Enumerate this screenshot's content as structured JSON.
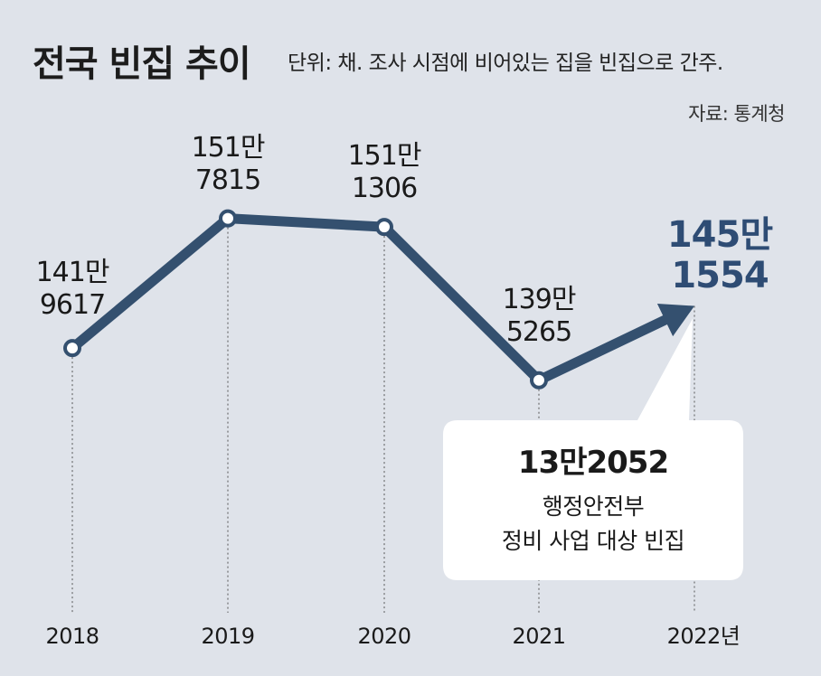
{
  "chart_data": {
    "type": "line",
    "title": "전국 빈집 추이",
    "subtitle": "단위: 채. 조사 시점에 비어있는 집을 빈집으로 간주.",
    "source": "자료: 통계청",
    "categories": [
      "2018",
      "2019",
      "2020",
      "2021",
      "2022년"
    ],
    "values": [
      1419617,
      1517815,
      1511306,
      1395265,
      1451554
    ],
    "value_labels": [
      [
        "141만",
        "9617"
      ],
      [
        "151만",
        "7815"
      ],
      [
        "151만",
        "1306"
      ],
      [
        "139만",
        "5265"
      ],
      [
        "145만",
        "1554"
      ]
    ],
    "ylim": [
      1300000,
      1560000
    ],
    "callout": {
      "value": "13만2052",
      "line1": "행정안전부",
      "line2": "정비 사업 대상 빈집"
    },
    "colors": {
      "line": "#34506f",
      "highlight": "#2e4c74",
      "background": "#dfe3ea"
    }
  }
}
